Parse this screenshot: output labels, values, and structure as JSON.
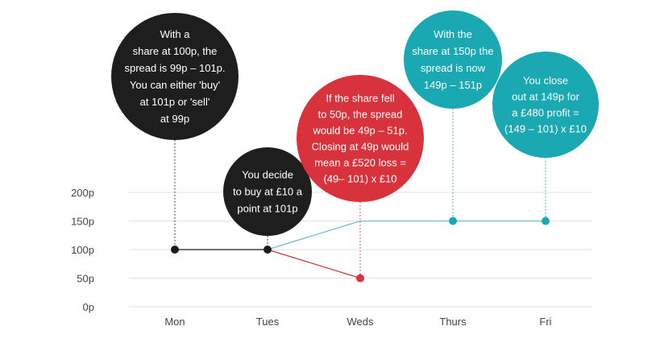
{
  "chart_data": {
    "type": "line",
    "categories": [
      "Mon",
      "Tues",
      "Weds",
      "Thurs",
      "Fri"
    ],
    "y_ticks": [
      "0p",
      "50p",
      "100p",
      "150p",
      "200p"
    ],
    "ylim": [
      0,
      200
    ],
    "grid": true,
    "series": [
      {
        "color": "#1a1a1a",
        "points": [
          {
            "x": "Mon",
            "y": 100
          },
          {
            "x": "Tues",
            "y": 100
          }
        ]
      },
      {
        "color": "#cc3a3a",
        "points": [
          {
            "x": "Tues",
            "y": 100
          },
          {
            "x": "Weds",
            "y": 50
          }
        ]
      },
      {
        "color": "#6bbfc9",
        "points": [
          {
            "x": "Tues",
            "y": 100
          },
          {
            "x": "Weds",
            "y": 150
          },
          {
            "x": "Thurs",
            "y": 150
          },
          {
            "x": "Fri",
            "y": 150
          }
        ]
      }
    ],
    "markers": [
      {
        "x": "Mon",
        "y": 100,
        "color": "#1a1a1a"
      },
      {
        "x": "Tues",
        "y": 100,
        "color": "#1a1a1a"
      },
      {
        "x": "Weds",
        "y": 50,
        "color": "#d8323c"
      },
      {
        "x": "Thurs",
        "y": 150,
        "color": "#1aa8b3"
      },
      {
        "x": "Fri",
        "y": 150,
        "color": "#1aa8b3"
      }
    ],
    "annotations": [
      {
        "name": "mon-callout",
        "x": "Mon",
        "y": 100,
        "color": "#1e1e1e",
        "lines": [
          "With a",
          "share at 100p, the",
          "spread is 99p – 101p.",
          "You can either 'buy'",
          "at 101p or 'sell'",
          "at 99p"
        ]
      },
      {
        "name": "tues-callout",
        "x": "Tues",
        "y": 100,
        "color": "#1e1e1e",
        "lines": [
          "You decide",
          "to buy at £10 a",
          "point at 101p"
        ]
      },
      {
        "name": "weds-callout",
        "x": "Weds",
        "y": 50,
        "color": "#d8323c",
        "lines": [
          "If the share fell",
          "to 50p, the spread",
          "would be 49p – 51p.",
          "Closing at 49p would",
          "mean a £520 loss =",
          "(49– 101) x £10"
        ]
      },
      {
        "name": "thurs-callout",
        "x": "Thurs",
        "y": 150,
        "color": "#1aa8b3",
        "lines": [
          "With the",
          "share at 150p the",
          "spread is now",
          "149p – 151p"
        ]
      },
      {
        "name": "fri-callout",
        "x": "Fri",
        "y": 150,
        "color": "#1aa8b3",
        "lines": [
          "You close",
          "out at 149p for",
          "a £480 profit =",
          "(149 – 101) x £10"
        ]
      }
    ]
  }
}
